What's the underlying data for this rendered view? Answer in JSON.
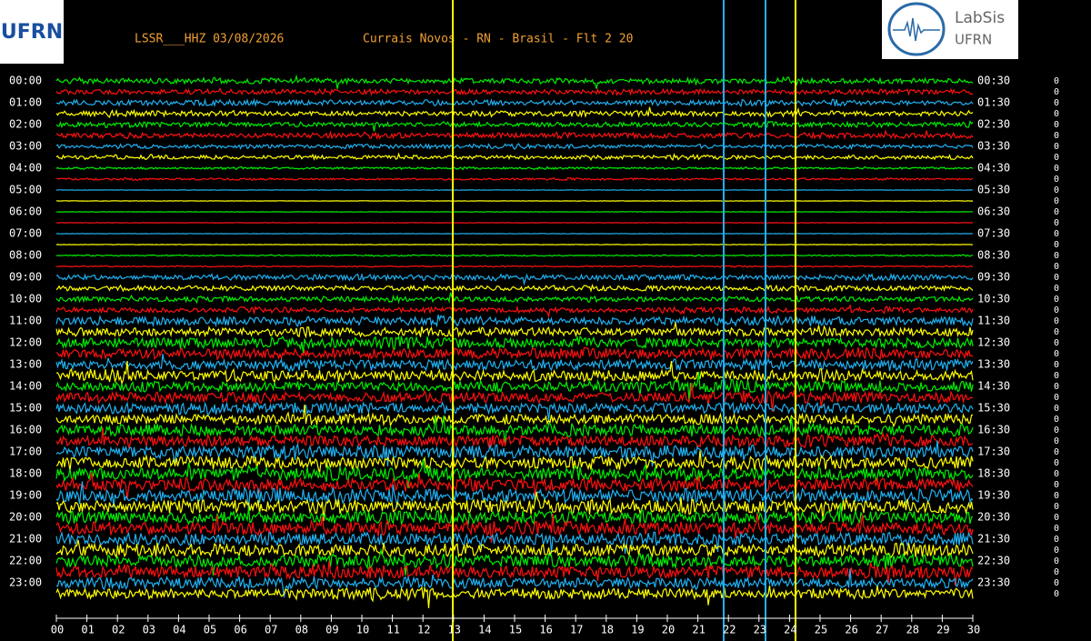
{
  "header": {
    "station": "LSSR___HHZ 03/08/2026",
    "location": "Currais Novos - RN - Brasil - Flt 2 20"
  },
  "logo_left": {
    "text": "UFRN"
  },
  "logo_right": {
    "title": "LabSis",
    "subtitle": "UFRN"
  },
  "left_labels": [
    "00:00",
    "01:00",
    "02:00",
    "03:00",
    "04:00",
    "05:00",
    "06:00",
    "07:00",
    "08:00",
    "09:00",
    "10:00",
    "11:00",
    "12:00",
    "13:00",
    "14:00",
    "15:00",
    "16:00",
    "17:00",
    "18:00",
    "19:00",
    "20:00",
    "21:00",
    "22:00",
    "23:00"
  ],
  "right_labels": [
    "00:30",
    "01:30",
    "02:30",
    "03:30",
    "04:30",
    "05:30",
    "06:30",
    "07:30",
    "08:30",
    "09:30",
    "10:30",
    "11:30",
    "12:30",
    "13:30",
    "14:30",
    "15:30",
    "16:30",
    "17:30",
    "18:30",
    "19:30",
    "20:30",
    "21:30",
    "22:30",
    "23:30"
  ],
  "bottom_labels": [
    "00",
    "01",
    "02",
    "03",
    "04",
    "05",
    "06",
    "07",
    "08",
    "09",
    "10",
    "11",
    "12",
    "13",
    "14",
    "15",
    "16",
    "17",
    "18",
    "19",
    "20",
    "21",
    "22",
    "23",
    "24",
    "25",
    "26",
    "27",
    "28",
    "29",
    "30"
  ],
  "right_markers": [
    "0",
    "0",
    "0",
    "0",
    "0",
    "0",
    "0",
    "0",
    "0",
    "0",
    "0",
    "0",
    "0",
    "0",
    "0",
    "0",
    "0",
    "0",
    "0",
    "0",
    "0",
    "0",
    "0",
    "0",
    "0",
    "0",
    "0",
    "0",
    "0",
    "0",
    "0",
    "0",
    "0",
    "0",
    "0",
    "0",
    "0",
    "0",
    "0",
    "0",
    "0",
    "0",
    "0",
    "0",
    "0",
    "0",
    "0",
    "0"
  ]
}
